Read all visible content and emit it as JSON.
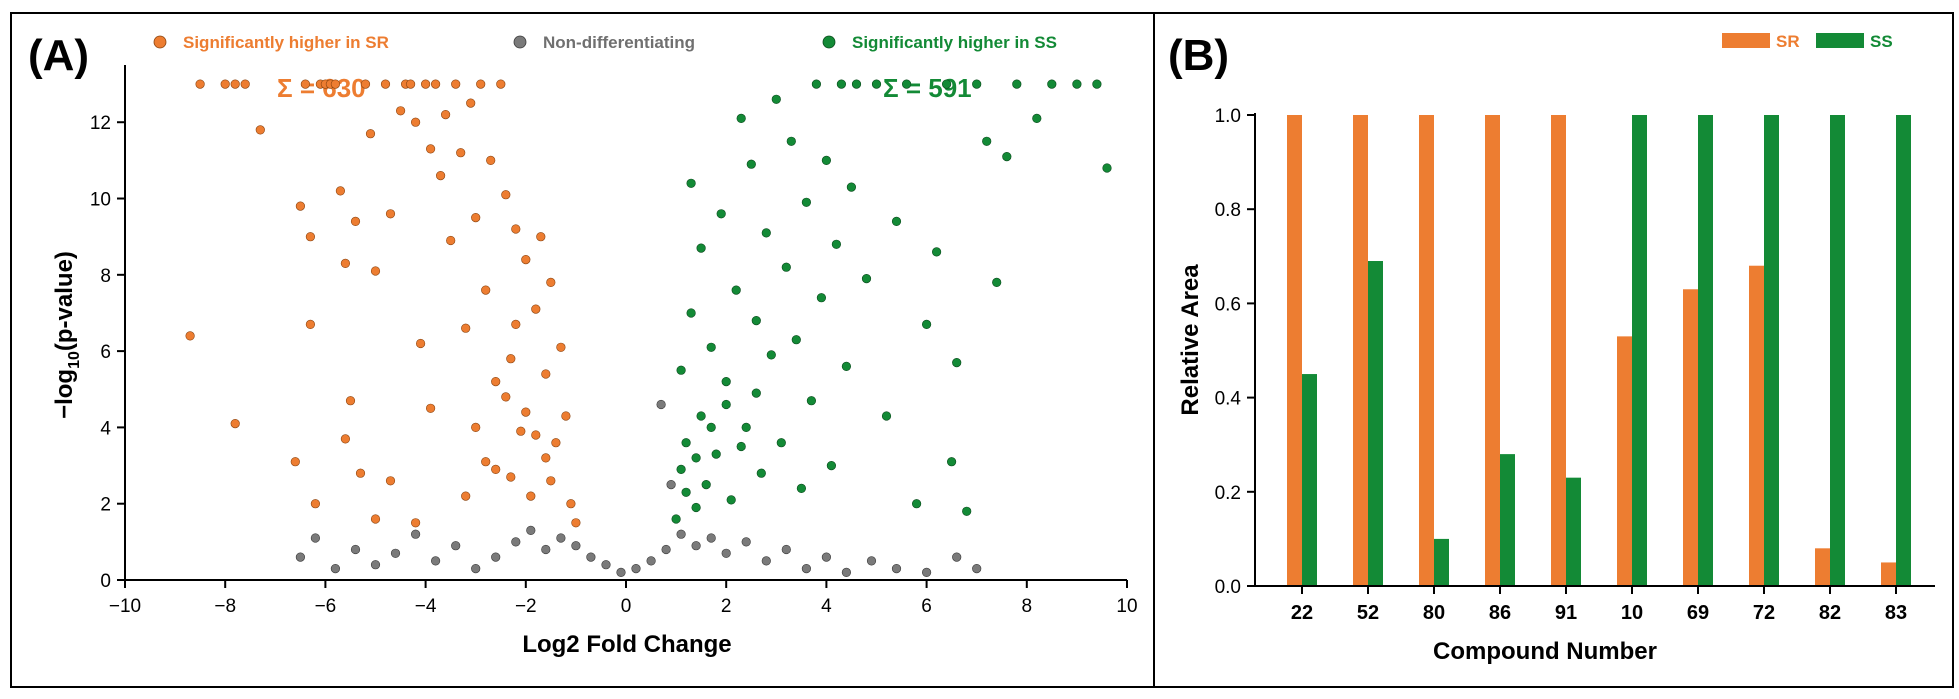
{
  "colors": {
    "sr": "#ED7D31",
    "ss": "#138A36",
    "non": "#7A7A7A",
    "axis": "#000000"
  },
  "panel_a": {
    "label": "(A)",
    "legend": [
      {
        "text": "Significantly higher in SR",
        "color": "#ED7D31"
      },
      {
        "text": "Non-differentiating",
        "color": "#707070"
      },
      {
        "text": "Significantly higher in SS",
        "color": "#138A36"
      }
    ],
    "sum_sr": "Σ = 630",
    "sum_ss": "Σ = 591",
    "y_label_prefix": "−log",
    "y_label_sub": "10",
    "y_label_suffix": "(p-value)"
  },
  "panel_b": {
    "label": "(B)"
  },
  "chart_data": [
    {
      "type": "scatter",
      "title": "",
      "xlabel": "Log2 Fold Change",
      "ylabel": "−log10(p-value)",
      "xlim": [
        -10,
        10
      ],
      "ylim": [
        0,
        13.5
      ],
      "xticks": [
        -10,
        -8,
        -6,
        -4,
        -2,
        0,
        2,
        4,
        6,
        8,
        10
      ],
      "yticks": [
        0,
        2,
        4,
        6,
        8,
        10,
        12
      ],
      "grid": false,
      "legend_position": "top",
      "series": [
        {
          "name": "Significantly higher in SR",
          "count": 630,
          "points": [
            [
              -8.7,
              6.4
            ],
            [
              -8.5,
              13
            ],
            [
              -8.0,
              13
            ],
            [
              -7.8,
              13
            ],
            [
              -7.6,
              13
            ],
            [
              -7.3,
              11.8
            ],
            [
              -7.8,
              4.1
            ],
            [
              -6.6,
              3.1
            ],
            [
              -6.5,
              9.8
            ],
            [
              -6.4,
              13
            ],
            [
              -6.3,
              9.0
            ],
            [
              -6.3,
              6.7
            ],
            [
              -6.2,
              2.0
            ],
            [
              -6.1,
              13
            ],
            [
              -6.0,
              13
            ],
            [
              -5.9,
              13
            ],
            [
              -5.8,
              13
            ],
            [
              -5.7,
              10.2
            ],
            [
              -5.6,
              8.3
            ],
            [
              -5.6,
              3.7
            ],
            [
              -5.5,
              4.7
            ],
            [
              -5.4,
              9.4
            ],
            [
              -5.3,
              2.8
            ],
            [
              -5.2,
              13
            ],
            [
              -5.1,
              11.7
            ],
            [
              -5.0,
              8.1
            ],
            [
              -5.0,
              1.6
            ],
            [
              -4.8,
              13
            ],
            [
              -4.7,
              9.6
            ],
            [
              -4.7,
              2.6
            ],
            [
              -4.5,
              12.3
            ],
            [
              -4.4,
              13
            ],
            [
              -4.3,
              13
            ],
            [
              -4.2,
              12.0
            ],
            [
              -4.2,
              1.5
            ],
            [
              -4.1,
              6.2
            ],
            [
              -4.0,
              13
            ],
            [
              -3.9,
              11.3
            ],
            [
              -3.9,
              4.5
            ],
            [
              -3.8,
              13
            ],
            [
              -3.7,
              10.6
            ],
            [
              -3.6,
              12.2
            ],
            [
              -3.5,
              8.9
            ],
            [
              -3.4,
              13
            ],
            [
              -3.3,
              11.2
            ],
            [
              -3.2,
              2.2
            ],
            [
              -3.2,
              6.6
            ],
            [
              -3.1,
              12.5
            ],
            [
              -3.0,
              9.5
            ],
            [
              -2.9,
              13
            ],
            [
              -2.8,
              7.6
            ],
            [
              -2.7,
              11.0
            ],
            [
              -2.6,
              2.9
            ],
            [
              -2.5,
              13
            ],
            [
              -2.4,
              10.1
            ],
            [
              -2.3,
              5.8
            ],
            [
              -2.2,
              9.2
            ],
            [
              -2.1,
              3.9
            ],
            [
              -2.0,
              8.4
            ],
            [
              -1.9,
              2.2
            ],
            [
              -1.8,
              7.1
            ],
            [
              -1.7,
              9.0
            ],
            [
              -1.6,
              5.4
            ],
            [
              -1.5,
              7.8
            ],
            [
              -1.4,
              3.6
            ],
            [
              -1.3,
              6.1
            ],
            [
              -1.2,
              4.3
            ],
            [
              -1.1,
              2.0
            ],
            [
              -1.0,
              1.5
            ],
            [
              -2.4,
              4.8
            ],
            [
              -2.0,
              4.4
            ],
            [
              -1.8,
              3.8
            ],
            [
              -1.6,
              3.2
            ],
            [
              -2.3,
              2.7
            ],
            [
              -1.5,
              2.6
            ],
            [
              -2.2,
              6.7
            ],
            [
              -2.6,
              5.2
            ],
            [
              -3.0,
              4.0
            ],
            [
              -2.8,
              3.1
            ]
          ]
        },
        {
          "name": "Non-differentiating",
          "points": [
            [
              -6.5,
              0.6
            ],
            [
              -6.2,
              1.1
            ],
            [
              -5.8,
              0.3
            ],
            [
              -5.4,
              0.8
            ],
            [
              -5.0,
              0.4
            ],
            [
              -4.6,
              0.7
            ],
            [
              -4.2,
              1.2
            ],
            [
              -3.8,
              0.5
            ],
            [
              -3.4,
              0.9
            ],
            [
              -3.0,
              0.3
            ],
            [
              -2.6,
              0.6
            ],
            [
              -2.2,
              1.0
            ],
            [
              -1.9,
              1.3
            ],
            [
              -1.6,
              0.8
            ],
            [
              -1.3,
              1.1
            ],
            [
              -1.0,
              0.9
            ],
            [
              -0.7,
              0.6
            ],
            [
              -0.4,
              0.4
            ],
            [
              -0.1,
              0.2
            ],
            [
              0.2,
              0.3
            ],
            [
              0.5,
              0.5
            ],
            [
              0.8,
              0.8
            ],
            [
              1.1,
              1.2
            ],
            [
              1.4,
              0.9
            ],
            [
              1.7,
              1.1
            ],
            [
              2.0,
              0.7
            ],
            [
              2.4,
              1.0
            ],
            [
              2.8,
              0.5
            ],
            [
              3.2,
              0.8
            ],
            [
              3.6,
              0.3
            ],
            [
              4.0,
              0.6
            ],
            [
              4.4,
              0.2
            ],
            [
              4.9,
              0.5
            ],
            [
              5.4,
              0.3
            ],
            [
              6.0,
              0.2
            ],
            [
              6.6,
              0.6
            ],
            [
              7.0,
              0.3
            ],
            [
              0.7,
              4.6
            ],
            [
              0.9,
              2.5
            ]
          ]
        },
        {
          "name": "Significantly higher in SS",
          "count": 591,
          "points": [
            [
              1.0,
              1.6
            ],
            [
              1.1,
              2.9
            ],
            [
              1.1,
              5.5
            ],
            [
              1.2,
              3.6
            ],
            [
              1.3,
              7.0
            ],
            [
              1.3,
              10.4
            ],
            [
              1.4,
              1.9
            ],
            [
              1.5,
              4.3
            ],
            [
              1.5,
              8.7
            ],
            [
              1.6,
              2.5
            ],
            [
              1.7,
              6.1
            ],
            [
              1.8,
              3.3
            ],
            [
              1.9,
              9.6
            ],
            [
              2.0,
              5.2
            ],
            [
              2.1,
              2.1
            ],
            [
              2.2,
              7.6
            ],
            [
              2.3,
              12.1
            ],
            [
              2.4,
              4.0
            ],
            [
              2.5,
              10.9
            ],
            [
              2.6,
              6.8
            ],
            [
              2.7,
              2.8
            ],
            [
              2.8,
              9.1
            ],
            [
              2.9,
              5.9
            ],
            [
              3.0,
              12.6
            ],
            [
              3.1,
              3.6
            ],
            [
              3.2,
              8.2
            ],
            [
              3.3,
              11.5
            ],
            [
              3.4,
              6.3
            ],
            [
              3.5,
              2.4
            ],
            [
              3.6,
              9.9
            ],
            [
              3.7,
              4.7
            ],
            [
              3.8,
              13
            ],
            [
              3.9,
              7.4
            ],
            [
              4.0,
              11.0
            ],
            [
              4.1,
              3.0
            ],
            [
              4.2,
              8.8
            ],
            [
              4.3,
              13
            ],
            [
              4.4,
              5.6
            ],
            [
              4.5,
              10.3
            ],
            [
              4.6,
              13
            ],
            [
              4.8,
              7.9
            ],
            [
              5.0,
              13
            ],
            [
              5.2,
              4.3
            ],
            [
              5.4,
              9.4
            ],
            [
              5.6,
              13
            ],
            [
              5.8,
              2.0
            ],
            [
              6.0,
              6.7
            ],
            [
              6.2,
              8.6
            ],
            [
              6.4,
              13
            ],
            [
              6.5,
              3.1
            ],
            [
              6.6,
              5.7
            ],
            [
              6.8,
              1.8
            ],
            [
              7.0,
              13
            ],
            [
              7.2,
              11.5
            ],
            [
              7.4,
              7.8
            ],
            [
              7.6,
              11.1
            ],
            [
              7.8,
              13
            ],
            [
              8.2,
              12.1
            ],
            [
              8.5,
              13
            ],
            [
              9.0,
              13
            ],
            [
              9.4,
              13
            ],
            [
              9.6,
              10.8
            ],
            [
              2.0,
              4.6
            ],
            [
              1.7,
              4.0
            ],
            [
              1.4,
              3.2
            ],
            [
              2.3,
              3.5
            ],
            [
              2.6,
              4.9
            ],
            [
              1.2,
              2.3
            ]
          ]
        }
      ]
    },
    {
      "type": "bar",
      "title": "",
      "xlabel": "Compound Number",
      "ylabel": "Relative Area",
      "ylim": [
        0,
        1.0
      ],
      "yticks": [
        0.0,
        0.2,
        0.4,
        0.6,
        0.8,
        1.0
      ],
      "legend_position": "top-right",
      "categories": [
        "22",
        "52",
        "80",
        "86",
        "91",
        "10",
        "69",
        "72",
        "82",
        "83"
      ],
      "series": [
        {
          "name": "SR",
          "values": [
            1.0,
            1.0,
            1.0,
            1.0,
            1.0,
            0.53,
            0.63,
            0.68,
            0.08,
            0.05
          ]
        },
        {
          "name": "SS",
          "values": [
            0.45,
            0.69,
            0.1,
            0.28,
            0.23,
            1.0,
            1.0,
            1.0,
            1.0,
            1.0
          ]
        }
      ]
    }
  ]
}
